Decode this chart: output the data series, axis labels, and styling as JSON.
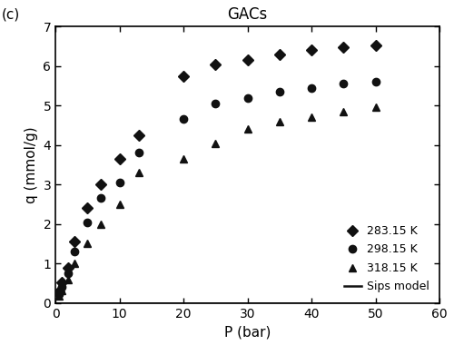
{
  "title": "GACs",
  "xlabel": "P (bar)",
  "ylabel": "q (mmol/g)",
  "panel_label": "(c)",
  "xlim": [
    0,
    60
  ],
  "ylim": [
    0,
    7
  ],
  "xticks": [
    0,
    10,
    20,
    30,
    40,
    50,
    60
  ],
  "yticks": [
    0,
    1,
    2,
    3,
    4,
    5,
    6,
    7
  ],
  "series": [
    {
      "label": "283.15 K",
      "marker": "D",
      "color": "#111111",
      "data_x": [
        0.5,
        1.0,
        2.0,
        3.0,
        5.0,
        7.0,
        10.0,
        13.0,
        20.0,
        25.0,
        30.0,
        35.0,
        40.0,
        45.0,
        50.0
      ],
      "data_y": [
        0.28,
        0.52,
        0.88,
        1.55,
        2.4,
        3.0,
        3.65,
        4.25,
        5.75,
        6.05,
        6.15,
        6.3,
        6.4,
        6.48,
        6.52
      ]
    },
    {
      "label": "298.15 K",
      "marker": "o",
      "color": "#111111",
      "data_x": [
        0.5,
        1.0,
        2.0,
        3.0,
        5.0,
        7.0,
        10.0,
        13.0,
        20.0,
        25.0,
        30.0,
        35.0,
        40.0,
        45.0,
        50.0
      ],
      "data_y": [
        0.22,
        0.4,
        0.75,
        1.3,
        2.05,
        2.65,
        3.05,
        3.8,
        4.65,
        5.05,
        5.2,
        5.35,
        5.45,
        5.55,
        5.6
      ]
    },
    {
      "label": "318.15 K",
      "marker": "^",
      "color": "#111111",
      "data_x": [
        0.5,
        1.0,
        2.0,
        3.0,
        5.0,
        7.0,
        10.0,
        13.0,
        20.0,
        25.0,
        30.0,
        35.0,
        40.0,
        45.0,
        50.0
      ],
      "data_y": [
        0.18,
        0.32,
        0.6,
        1.0,
        1.5,
        2.0,
        2.5,
        3.3,
        3.65,
        4.05,
        4.4,
        4.6,
        4.7,
        4.85,
        4.95
      ]
    }
  ],
  "background_color": "#ffffff",
  "line_color": "#111111",
  "line_width": 1.8,
  "marker_size": 6,
  "title_fontsize": 12,
  "axis_fontsize": 11,
  "tick_fontsize": 10,
  "legend_fontsize": 9
}
